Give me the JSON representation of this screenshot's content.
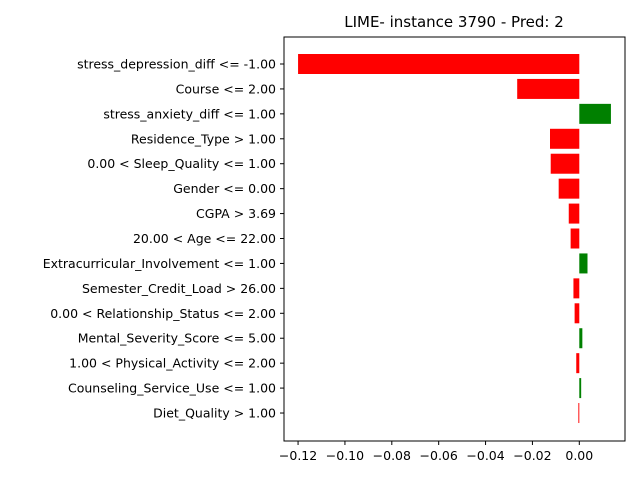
{
  "chart_data": {
    "type": "bar",
    "orientation": "horizontal",
    "title": "LIME- instance 3790 - Pred: 2",
    "xlabel": "",
    "ylabel": "",
    "xlim": [
      -0.126,
      0.0195
    ],
    "xticks": [
      -0.12,
      -0.1,
      -0.08,
      -0.06,
      -0.04,
      -0.02,
      0.0
    ],
    "xtick_labels": [
      "−0.12",
      "−0.10",
      "−0.08",
      "−0.06",
      "−0.04",
      "−0.02",
      "0.00"
    ],
    "grid": false,
    "legend": false,
    "positive_color": "#008000",
    "negative_color": "#ff0000",
    "categories": [
      "stress_depression_diff <= -1.00",
      "Course <= 2.00",
      "stress_anxiety_diff <= 1.00",
      "Residence_Type > 1.00",
      "0.00 < Sleep_Quality <= 1.00",
      "Gender <= 0.00",
      "CGPA > 3.69",
      "20.00 < Age <= 22.00",
      "Extracurricular_Involvement <= 1.00",
      "Semester_Credit_Load > 26.00",
      "0.00 < Relationship_Status <= 2.00",
      "Mental_Severity_Score <= 5.00",
      "1.00 < Physical_Activity <= 2.00",
      "Counseling_Service_Use <= 1.00",
      "Diet_Quality > 1.00"
    ],
    "values": [
      -0.12,
      -0.0265,
      0.0135,
      -0.0125,
      -0.0122,
      -0.0088,
      -0.0045,
      -0.0037,
      0.0035,
      -0.0025,
      -0.002,
      0.0013,
      -0.0013,
      0.0008,
      -0.0004
    ]
  }
}
